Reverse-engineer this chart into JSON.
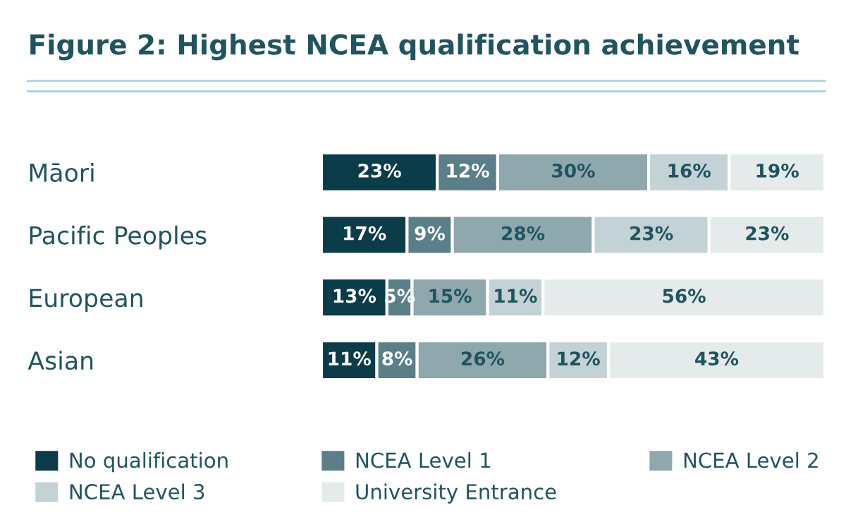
{
  "chart_data": {
    "type": "bar",
    "orientation": "horizontal",
    "stacked": true,
    "title": "Figure 2: Highest NCEA qualification achievement",
    "categories": [
      "Māori",
      "Pacific Peoples",
      "European",
      "Asian"
    ],
    "series": [
      {
        "name": "No qualification",
        "color": "#0b3c49",
        "values": [
          23,
          17,
          13,
          11
        ],
        "value_labels": [
          "23%",
          "17%",
          "13%",
          "11%"
        ]
      },
      {
        "name": "NCEA Level 1",
        "color": "#5b7f89",
        "values": [
          12,
          9,
          5,
          8
        ],
        "value_labels": [
          "12%",
          "9%",
          "5%",
          "8%"
        ]
      },
      {
        "name": "NCEA Level 2",
        "color": "#8fa8ad",
        "values": [
          30,
          28,
          15,
          26
        ],
        "value_labels": [
          "30%",
          "28%",
          "15%",
          "26%"
        ]
      },
      {
        "name": "NCEA Level 3",
        "color": "#c3d2d4",
        "values": [
          16,
          23,
          11,
          12
        ],
        "value_labels": [
          "16%",
          "23%",
          "11%",
          "12%"
        ]
      },
      {
        "name": "University Entrance",
        "color": "#e5ebeb",
        "values": [
          19,
          23,
          56,
          43
        ],
        "value_labels": [
          "19%",
          "23%",
          "56%",
          "43%"
        ]
      }
    ],
    "xlim": [
      0,
      100
    ],
    "tick_labels": false,
    "grid": false,
    "legend": "bottom"
  }
}
